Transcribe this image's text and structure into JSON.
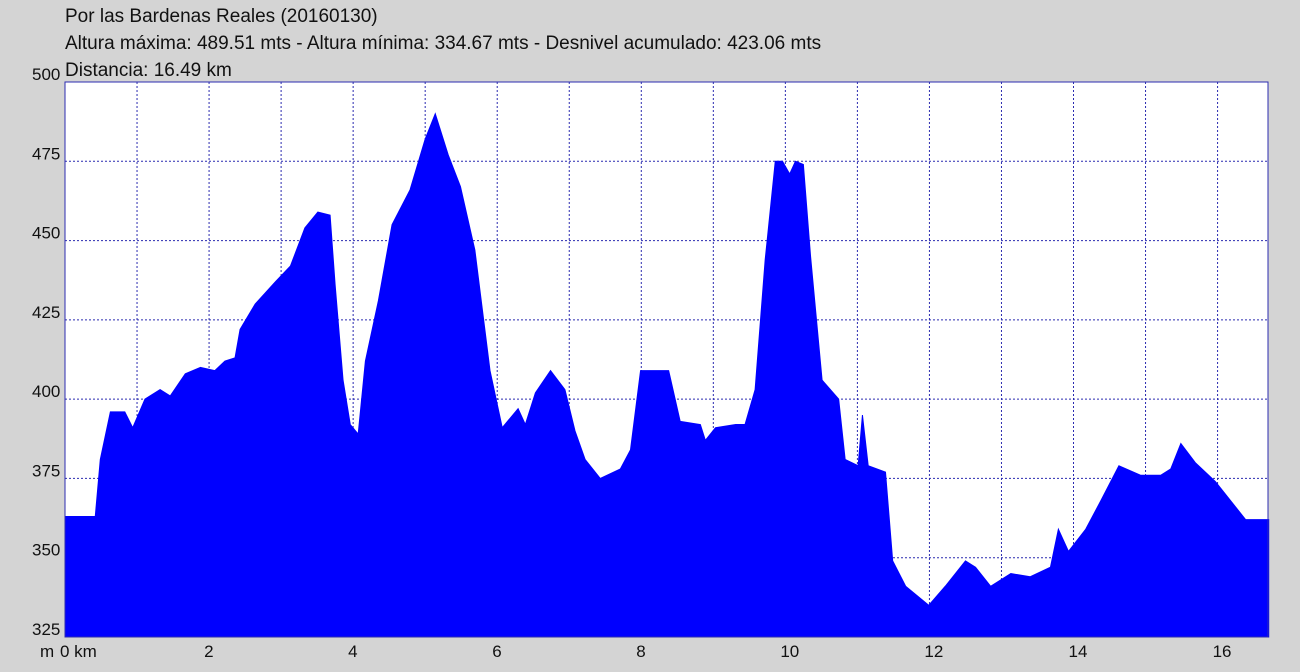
{
  "chart_data": {
    "type": "area",
    "title": "Por las Bardenas Reales (20160130)",
    "subtitle": "Altura máxima: 489.51 mts - Altura mínima: 334.67 mts - Desnivel acumulado: 423.06 mts",
    "subtitle2": "Distancia: 16.49 km",
    "y_label": "m",
    "color": "#0000ff",
    "grid": true,
    "xlim": [
      0,
      16.7
    ],
    "ylim": [
      325,
      500
    ],
    "xticks": [
      {
        "value": 0,
        "label": "0 km"
      },
      2,
      4,
      6,
      8,
      10,
      12,
      14,
      16
    ],
    "x_minor_ticks": [
      1,
      3,
      5,
      7,
      9,
      11,
      13,
      15
    ],
    "yticks": [
      325,
      350,
      375,
      400,
      425,
      450,
      475,
      500
    ],
    "x": [
      0,
      0.42,
      0.49,
      0.63,
      0.83,
      0.94,
      1.11,
      1.32,
      1.46,
      1.67,
      1.88,
      2.08,
      2.22,
      2.36,
      2.43,
      2.64,
      2.92,
      3.13,
      3.33,
      3.51,
      3.68,
      3.75,
      3.86,
      3.96,
      4.07,
      4.17,
      4.35,
      4.54,
      4.79,
      5.0,
      5.14,
      5.32,
      5.49,
      5.69,
      5.9,
      6.07,
      6.18,
      6.29,
      6.39,
      6.53,
      6.74,
      6.94,
      7.08,
      7.22,
      7.43,
      7.71,
      7.85,
      7.99,
      8.19,
      8.38,
      8.54,
      8.82,
      8.89,
      9.03,
      9.31,
      9.44,
      9.58,
      9.72,
      9.86,
      9.96,
      10.06,
      10.14,
      10.25,
      10.35,
      10.51,
      10.74,
      10.83,
      11.01,
      11.07,
      11.15,
      11.39,
      11.49,
      11.67,
      11.99,
      12.22,
      12.5,
      12.64,
      12.85,
      13.13,
      13.4,
      13.68,
      13.79,
      13.93,
      14.17,
      14.38,
      14.63,
      14.93,
      15.21,
      15.35,
      15.49,
      15.69,
      15.97,
      16.39,
      16.71
    ],
    "values": [
      363,
      363,
      381,
      396,
      396,
      391,
      400,
      403,
      401,
      408,
      410,
      409,
      412,
      413,
      422,
      430,
      437,
      442,
      454,
      459,
      458,
      436,
      406,
      392,
      389,
      412,
      431,
      455,
      466,
      482,
      490,
      477,
      467,
      447,
      409,
      391,
      394,
      397,
      392,
      402,
      409,
      403,
      390,
      381,
      375,
      378,
      384,
      409,
      409,
      409,
      393,
      392,
      387,
      391,
      392,
      392,
      403,
      444,
      475,
      475,
      471,
      475,
      474,
      445,
      406,
      400,
      381,
      379,
      395,
      379,
      377,
      349,
      341,
      335,
      341,
      349,
      347,
      341,
      345,
      344,
      347,
      359,
      352,
      359,
      368,
      379,
      376,
      376,
      378,
      386,
      380,
      374,
      362,
      362
    ]
  }
}
